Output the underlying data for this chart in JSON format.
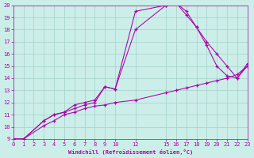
{
  "background_color": "#cceee8",
  "grid_color": "#aad4ce",
  "line_color": "#aa00aa",
  "xlabel": "Windchill (Refroidissement éolien,°C)",
  "ylim": [
    9,
    20
  ],
  "xlim": [
    0,
    23
  ],
  "yticks": [
    9,
    10,
    11,
    12,
    13,
    14,
    15,
    16,
    17,
    18,
    19,
    20
  ],
  "xticks": [
    0,
    1,
    2,
    3,
    4,
    5,
    6,
    7,
    8,
    9,
    10,
    12,
    15,
    16,
    17,
    18,
    19,
    20,
    21,
    22,
    23
  ],
  "line1_x": [
    0,
    1,
    3,
    4,
    5,
    6,
    7,
    8,
    9,
    10,
    12,
    15,
    16,
    17,
    18,
    19,
    20,
    21,
    22,
    23
  ],
  "line1_y": [
    9.0,
    9.0,
    10.1,
    10.5,
    11.0,
    11.2,
    11.5,
    11.7,
    11.8,
    12.0,
    12.2,
    12.8,
    13.0,
    13.2,
    13.4,
    13.6,
    13.8,
    14.0,
    14.3,
    15.0
  ],
  "line2_x": [
    0,
    1,
    3,
    4,
    5,
    6,
    7,
    8,
    9,
    10,
    12,
    15,
    16,
    17,
    18,
    19,
    20,
    21,
    22,
    23
  ],
  "line2_y": [
    9.0,
    9.0,
    10.5,
    11.0,
    11.2,
    11.5,
    11.8,
    12.0,
    13.3,
    13.1,
    18.0,
    20.0,
    20.2,
    19.2,
    18.2,
    16.7,
    15.0,
    14.2,
    14.0,
    15.2
  ],
  "line3_x": [
    0,
    1,
    3,
    4,
    5,
    6,
    7,
    8,
    9,
    10,
    12,
    15,
    16,
    17,
    18,
    19,
    20,
    21,
    22,
    23
  ],
  "line3_y": [
    9.0,
    9.0,
    10.5,
    11.0,
    11.2,
    11.8,
    12.0,
    12.2,
    13.3,
    13.1,
    19.5,
    20.0,
    20.2,
    19.5,
    18.2,
    17.0,
    16.0,
    15.0,
    14.0,
    15.0
  ]
}
